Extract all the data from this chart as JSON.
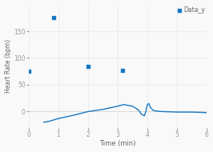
{
  "title": "",
  "xlabel": "Time (min)",
  "ylabel": "Heart Rate (bpm)",
  "legend_label": "Data_y",
  "scatter_x": [
    0.0,
    0.85,
    2.0,
    3.15
  ],
  "scatter_y": [
    75,
    175,
    85,
    77
  ],
  "line_x": [
    0.5,
    0.7,
    1.0,
    1.5,
    2.0,
    2.5,
    3.0,
    3.2,
    3.5,
    3.7,
    3.8,
    3.9,
    3.95,
    4.0,
    4.05,
    4.1,
    4.2,
    4.3,
    4.5,
    5.0,
    5.5,
    6.0
  ],
  "line_y": [
    -20,
    -18,
    -13,
    -7,
    0,
    4,
    10,
    13,
    10,
    3,
    -5,
    -8,
    0,
    13,
    15,
    8,
    2,
    1,
    0,
    -1,
    -1,
    -2
  ],
  "xlim": [
    0,
    6
  ],
  "ylim": [
    -30,
    200
  ],
  "yticks": [
    0,
    50,
    100,
    150
  ],
  "xticks": [
    0,
    1,
    2,
    3,
    4,
    5,
    6
  ],
  "line_color": "#1a78c2",
  "scatter_color": "#1a78c2",
  "grid_color": "#e8e8e8",
  "bg_color": "#f9f9f9",
  "marker_size": 8,
  "legend_color": "#1a78c2"
}
